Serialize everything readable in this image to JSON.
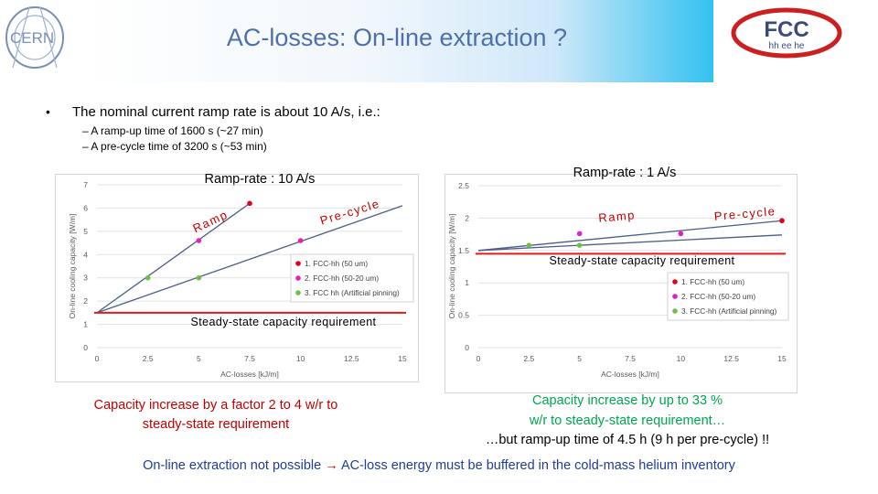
{
  "title": "AC-losses: On-line extraction ?",
  "logos": {
    "left": "CERN",
    "right_main": "FCC",
    "right_sub": "hh ee he"
  },
  "bullet": {
    "marker": "•",
    "text": "The nominal current ramp rate is about 10 A/s, i.e.:",
    "subitems": [
      "– A ramp-up time of 1600 s (~27 min)",
      "– A pre-cycle time of 3200 s (~53 min)"
    ]
  },
  "colors": {
    "fcc_50um": "#e3001b",
    "fcc_50_20um": "#e11fc8",
    "fcc_pinning": "#6dbf4b",
    "requirement_line": "#e31a1a",
    "model_line": "#4a5d86"
  },
  "chart_data": [
    {
      "type": "line",
      "title": "Ramp-rate : 10 A/s",
      "xlabel": "AC-losses [kJ/m]",
      "ylabel": "On-line cooling capacity [W/m]",
      "xlim": [
        0,
        15
      ],
      "ylim": [
        0,
        7
      ],
      "xticks": [
        0,
        2.5,
        5,
        7.5,
        10,
        12.5,
        15
      ],
      "xtick_labels": [
        "0",
        "2.5",
        "5",
        "7.5",
        "10",
        "12.5",
        "15"
      ],
      "yticks": [
        0,
        1,
        2,
        3,
        4,
        5,
        6,
        7
      ],
      "ytick_labels": [
        "0",
        "1",
        "2",
        "3",
        "4",
        "5",
        "6",
        "7"
      ],
      "grid": true,
      "legend_position": "center-right",
      "series": [
        {
          "name": "1. FCC-hh (50 um)",
          "x": [
            7.5
          ],
          "y": [
            6.2
          ]
        },
        {
          "name": "2. FCC-hh (50-20 um)",
          "x": [
            5,
            10
          ],
          "y": [
            4.6,
            4.6
          ]
        },
        {
          "name": "3. FCC hh (Artificial pinning)",
          "x": [
            2.5,
            5
          ],
          "y": [
            3.0,
            3.0
          ]
        }
      ],
      "model_lines": [
        {
          "label": "Ramp",
          "x": [
            0,
            7.5
          ],
          "y": [
            1.5,
            6.2
          ]
        },
        {
          "label": "Pre-cycle",
          "x": [
            0,
            15
          ],
          "y": [
            1.5,
            6.1
          ]
        }
      ],
      "requirement": {
        "label": "Steady-state capacity requirement",
        "y": 1.5
      }
    },
    {
      "type": "line",
      "title": "Ramp-rate : 1 A/s",
      "xlabel": "AC-losses [kJ/m]",
      "ylabel": "On-line cooling capacity [W/m]",
      "xlim": [
        0,
        15
      ],
      "ylim": [
        0,
        2.5
      ],
      "xticks": [
        0,
        2.5,
        5,
        7.5,
        10,
        12.5,
        15
      ],
      "xtick_labels": [
        "0",
        "2.5",
        "5",
        "7.5",
        "10",
        "12.5",
        "15"
      ],
      "yticks": [
        0,
        0.5,
        1,
        1.5,
        2,
        2.5
      ],
      "ytick_labels": [
        "0",
        "0.5",
        "1",
        "1.5",
        "2",
        "2.5"
      ],
      "grid": true,
      "legend_position": "bottom-right",
      "series": [
        {
          "name": "1. FCC-hh (50 um)",
          "x": [
            15
          ],
          "y": [
            1.96
          ]
        },
        {
          "name": "2. FCC-hh (50-20 um)",
          "x": [
            5,
            10
          ],
          "y": [
            1.76,
            1.76
          ]
        },
        {
          "name": "3. FCC-hh (Artificial pinning)",
          "x": [
            2.5,
            5
          ],
          "y": [
            1.58,
            1.58
          ]
        }
      ],
      "model_lines": [
        {
          "label": "Ramp",
          "x": [
            0,
            15
          ],
          "y": [
            1.5,
            1.96
          ]
        },
        {
          "label": "Pre-cycle",
          "x": [
            0,
            15
          ],
          "y": [
            1.5,
            1.74
          ]
        }
      ],
      "requirement": {
        "label": "Steady-state capacity requirement",
        "y": 1.45
      }
    }
  ],
  "captions": {
    "left": "Capacity increase by a factor 2 to 4 w/r to steady-state requirement",
    "right_line1": "Capacity increase by up to 33 %",
    "right_line2": "w/r to steady-state requirement…",
    "right_line3": "…but ramp-up time of 4.5 h (9 h per pre-cycle) !!"
  },
  "conclusion": {
    "part1": "On-line extraction not possible",
    "arrow": "→",
    "part2": "AC-loss energy must be buffered in the cold-mass helium inventory"
  }
}
